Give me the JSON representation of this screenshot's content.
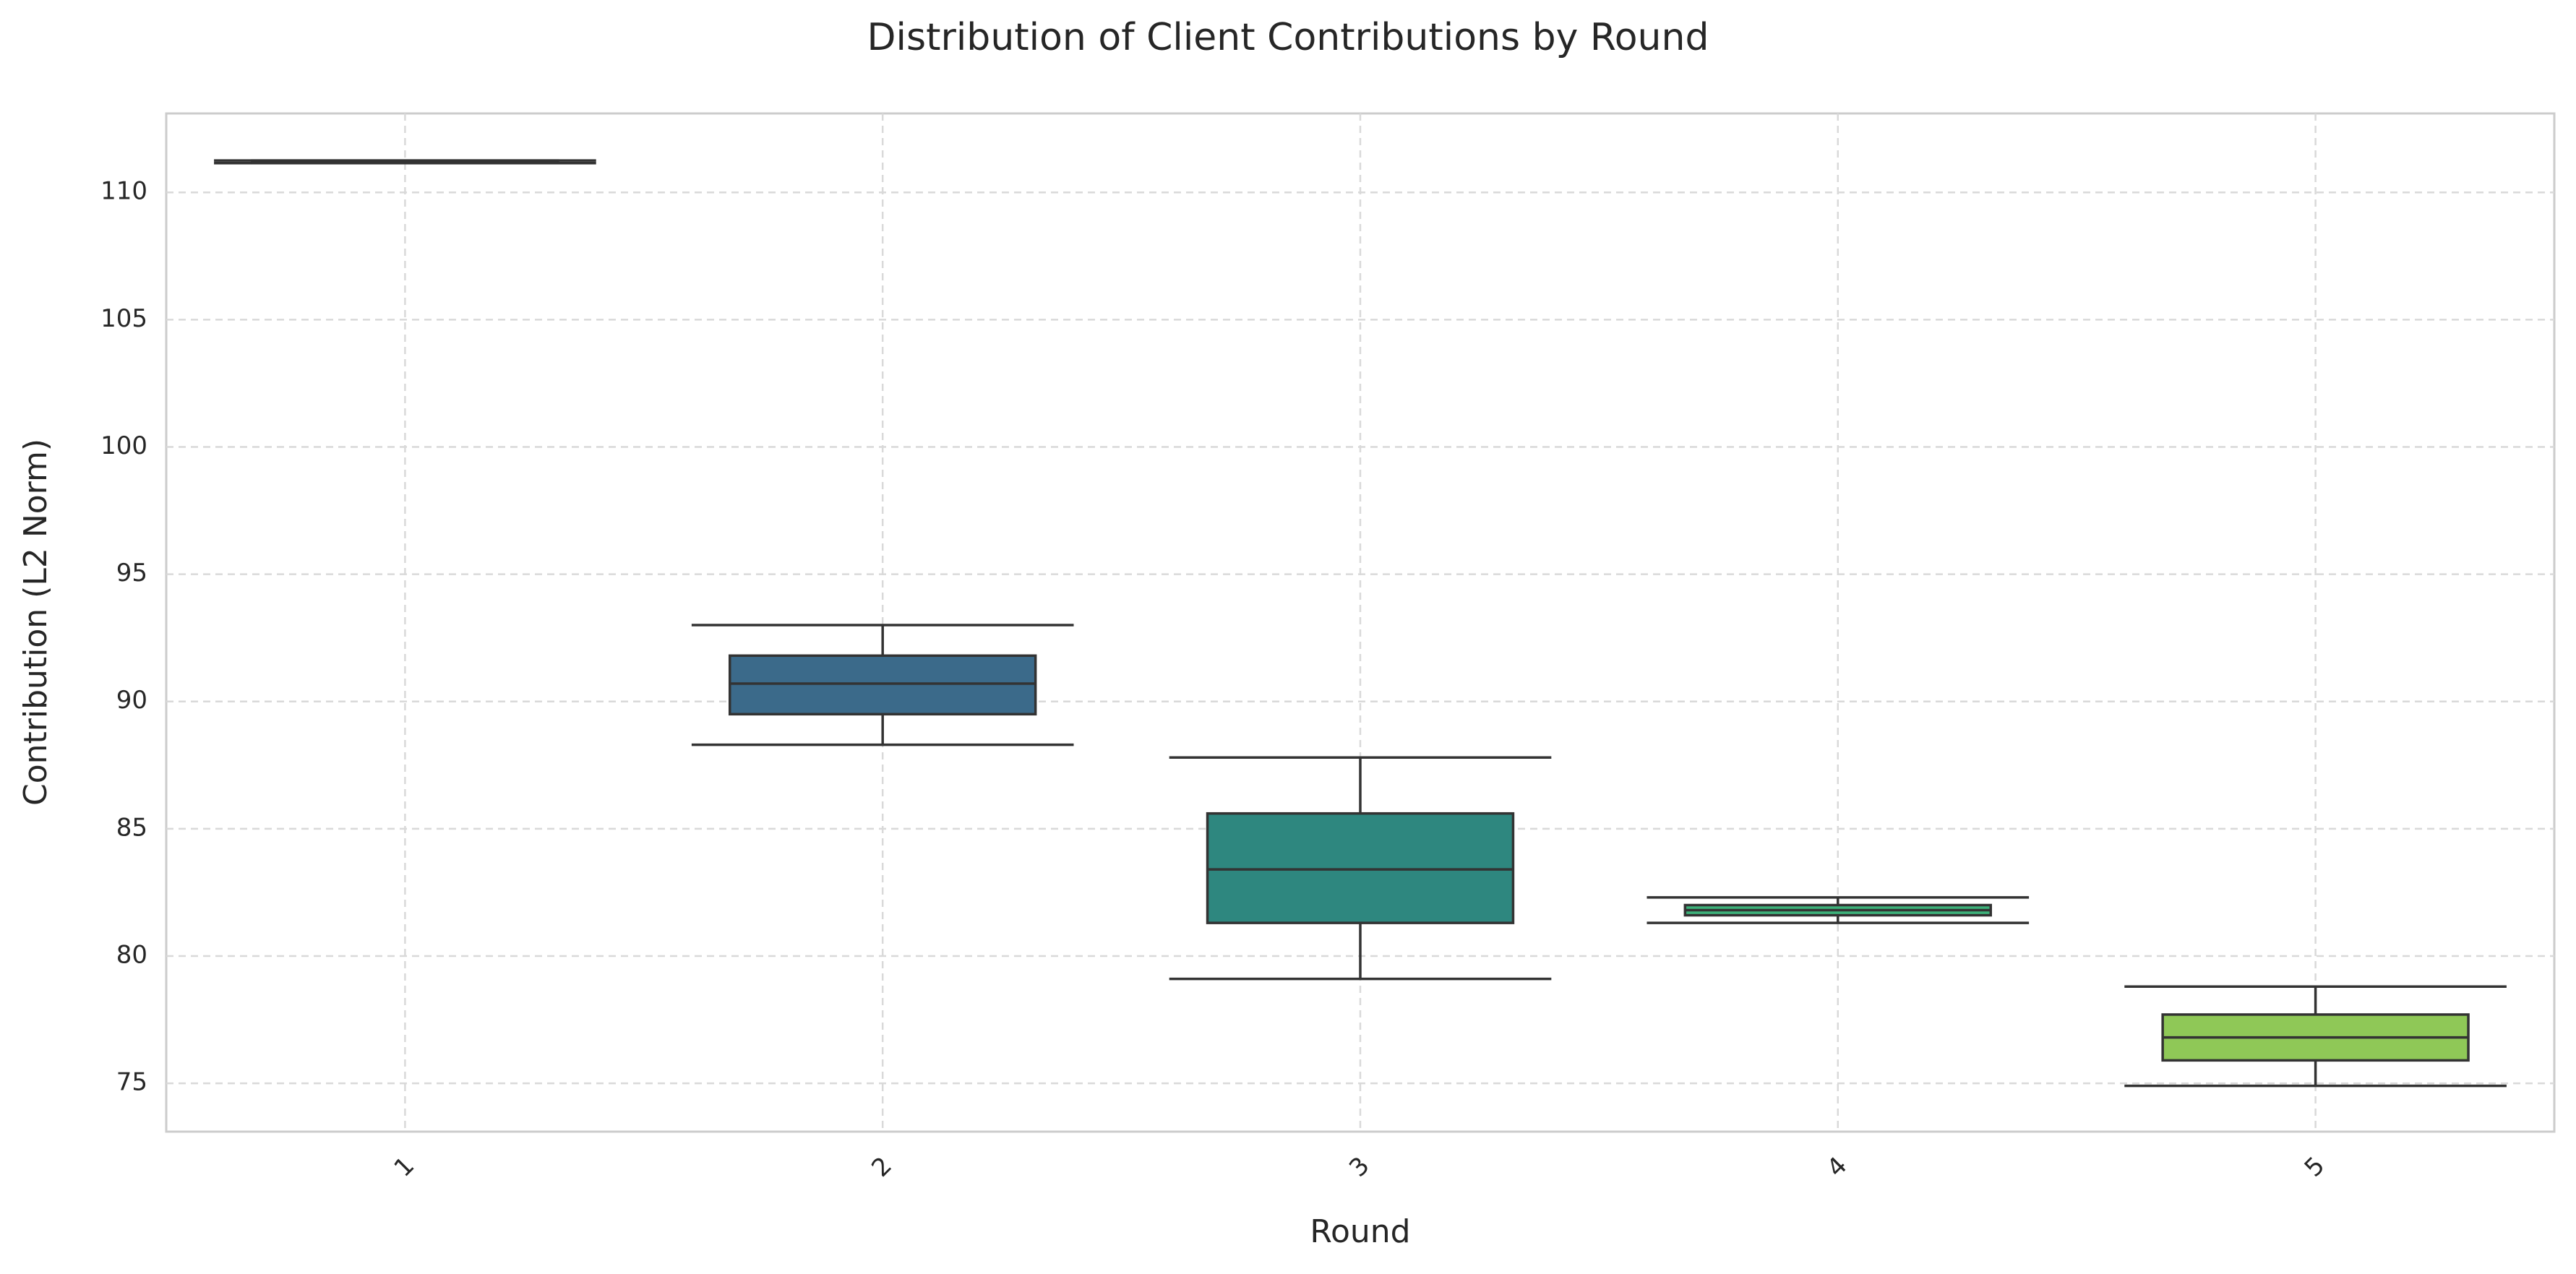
{
  "chart_data": {
    "type": "box",
    "title": "Distribution of Client Contributions by Round",
    "x_label": "Round",
    "y_label": "Contribution (L2 Norm)",
    "categories": [
      "1",
      "2",
      "3",
      "4",
      "5"
    ],
    "boxes": [
      {
        "min": 111.15,
        "q1": 111.15,
        "median": 111.2,
        "q3": 111.25,
        "max": 111.25,
        "color": "#46327e"
      },
      {
        "min": 88.3,
        "q1": 89.5,
        "median": 90.7,
        "q3": 91.8,
        "max": 93.0,
        "color": "#3b6a8a"
      },
      {
        "min": 79.1,
        "q1": 81.3,
        "median": 83.4,
        "q3": 85.6,
        "max": 87.8,
        "color": "#2e877f"
      },
      {
        "min": 81.3,
        "q1": 81.6,
        "median": 81.8,
        "q3": 82.0,
        "max": 82.3,
        "color": "#3cb27a"
      },
      {
        "min": 74.9,
        "q1": 75.9,
        "median": 76.8,
        "q3": 77.7,
        "max": 78.8,
        "color": "#8fc857"
      }
    ],
    "ylim": [
      73.1,
      113.1
    ],
    "yticks": [
      75,
      80,
      85,
      90,
      95,
      100,
      105,
      110
    ],
    "grid": true
  }
}
